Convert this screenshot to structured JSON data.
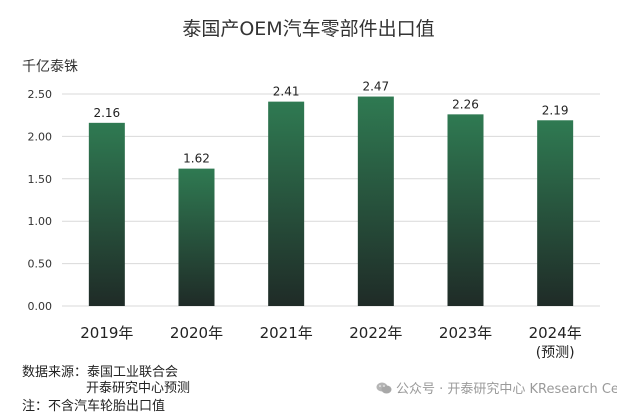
{
  "colors": {
    "bar_top": "#2f7a52",
    "bar_bottom": "#1f2b27",
    "grid": "#d9d9d9",
    "watermark": "#9a9a9a"
  },
  "header": {
    "title": "泰国产OEM汽车零部件出口值",
    "unit": "千亿泰铢"
  },
  "chart_data": {
    "type": "bar",
    "title": "泰国产OEM汽车零部件出口值",
    "ylabel": "千亿泰铢",
    "xlabel": "",
    "categories": [
      "2019年",
      "2020年",
      "2021年",
      "2022年",
      "2023年",
      "2024年"
    ],
    "category_notes": [
      "",
      "",
      "",
      "",
      "",
      "(预测)"
    ],
    "values": [
      2.16,
      1.62,
      2.41,
      2.47,
      2.26,
      2.19
    ],
    "value_labels": [
      "2.16",
      "1.62",
      "2.41",
      "2.47",
      "2.26",
      "2.19"
    ],
    "ylim": [
      0,
      2.5
    ],
    "yticks": [
      "0.00",
      "0.50",
      "1.00",
      "1.50",
      "2.00",
      "2.50"
    ],
    "grid": true,
    "legend": "none"
  },
  "footer": {
    "source_line1": "数据来源：泰国工业联合会",
    "source_line2": "开泰研究中心预测",
    "note": "注：不含汽车轮胎出口值",
    "watermark": "公众号 · 开泰研究中心 KResearch Center",
    "watermark_icon": "wechat-icon"
  }
}
